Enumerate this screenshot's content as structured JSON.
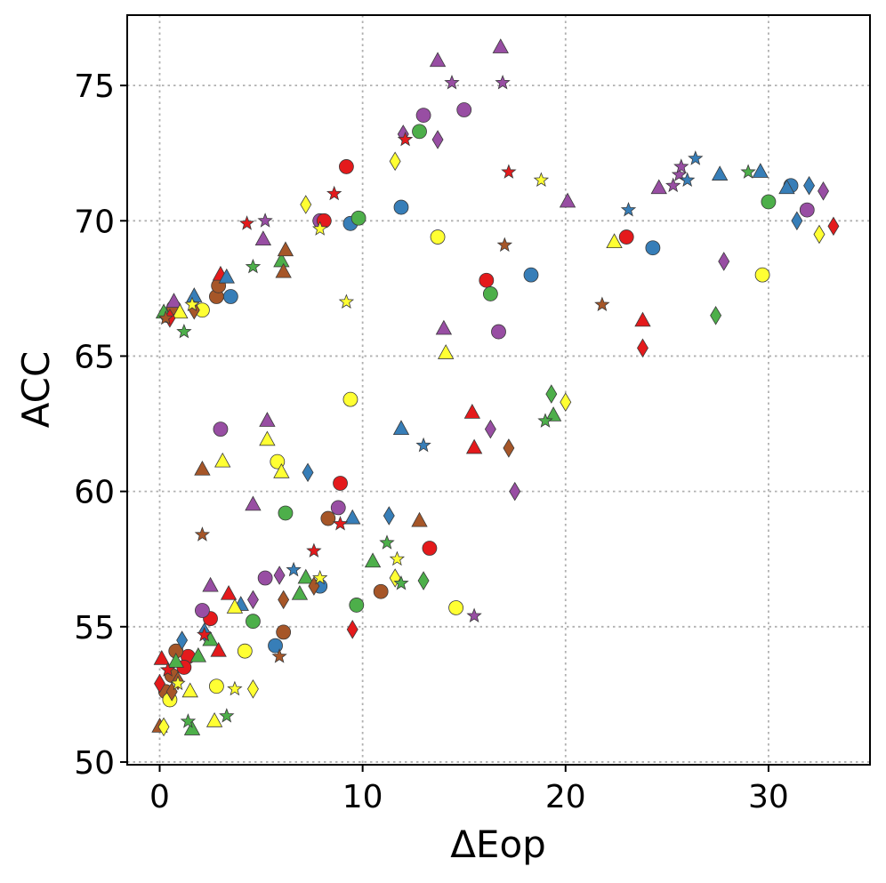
{
  "chart_data": {
    "type": "scatter",
    "title": "",
    "xlabel": "ΔEop",
    "ylabel": "ACC",
    "xlim": [
      -1.6,
      35
    ],
    "ylim": [
      49.9,
      77.6
    ],
    "xticks": [
      0,
      10,
      20,
      30
    ],
    "yticks": [
      50,
      55,
      60,
      65,
      70,
      75
    ],
    "grid": true,
    "legend": "none",
    "colors": {
      "red": "#e41a1c",
      "blue": "#377eb8",
      "green": "#4daf4a",
      "purple": "#984ea3",
      "yellow": "#ffff33",
      "brown": "#a65628"
    },
    "points": [
      {
        "x": 2.1,
        "y": 66.7,
        "c": "yellow",
        "m": "circle"
      },
      {
        "x": 2.8,
        "y": 67.2,
        "c": "brown",
        "m": "circle"
      },
      {
        "x": 3.5,
        "y": 67.2,
        "c": "blue",
        "m": "circle"
      },
      {
        "x": 2.9,
        "y": 67.6,
        "c": "brown",
        "m": "circle"
      },
      {
        "x": 0.4,
        "y": 66.5,
        "c": "yellow",
        "m": "circle"
      },
      {
        "x": 0.7,
        "y": 66.8,
        "c": "brown",
        "m": "circle"
      },
      {
        "x": 7.9,
        "y": 70.0,
        "c": "purple",
        "m": "circle"
      },
      {
        "x": 8.1,
        "y": 70.0,
        "c": "red",
        "m": "circle"
      },
      {
        "x": 9.2,
        "y": 72.0,
        "c": "red",
        "m": "circle"
      },
      {
        "x": 9.4,
        "y": 69.9,
        "c": "blue",
        "m": "circle"
      },
      {
        "x": 9.8,
        "y": 70.1,
        "c": "green",
        "m": "circle"
      },
      {
        "x": 11.9,
        "y": 70.5,
        "c": "blue",
        "m": "circle"
      },
      {
        "x": 12.8,
        "y": 73.3,
        "c": "green",
        "m": "circle"
      },
      {
        "x": 13.0,
        "y": 73.9,
        "c": "purple",
        "m": "circle"
      },
      {
        "x": 13.7,
        "y": 69.4,
        "c": "yellow",
        "m": "circle"
      },
      {
        "x": 15.0,
        "y": 74.1,
        "c": "purple",
        "m": "circle"
      },
      {
        "x": 16.1,
        "y": 67.8,
        "c": "red",
        "m": "circle"
      },
      {
        "x": 16.3,
        "y": 67.3,
        "c": "green",
        "m": "circle"
      },
      {
        "x": 16.7,
        "y": 65.9,
        "c": "purple",
        "m": "circle"
      },
      {
        "x": 18.3,
        "y": 68.0,
        "c": "blue",
        "m": "circle"
      },
      {
        "x": 23.0,
        "y": 69.4,
        "c": "red",
        "m": "circle"
      },
      {
        "x": 24.3,
        "y": 69.0,
        "c": "blue",
        "m": "circle"
      },
      {
        "x": 29.7,
        "y": 68.0,
        "c": "yellow",
        "m": "circle"
      },
      {
        "x": 30.0,
        "y": 70.7,
        "c": "green",
        "m": "circle"
      },
      {
        "x": 31.1,
        "y": 71.3,
        "c": "blue",
        "m": "circle"
      },
      {
        "x": 31.9,
        "y": 70.4,
        "c": "purple",
        "m": "circle"
      },
      {
        "x": 3.0,
        "y": 62.3,
        "c": "purple",
        "m": "circle"
      },
      {
        "x": 5.8,
        "y": 61.1,
        "c": "yellow",
        "m": "circle"
      },
      {
        "x": 6.2,
        "y": 59.2,
        "c": "green",
        "m": "circle"
      },
      {
        "x": 8.9,
        "y": 60.3,
        "c": "red",
        "m": "circle"
      },
      {
        "x": 8.8,
        "y": 59.4,
        "c": "purple",
        "m": "circle"
      },
      {
        "x": 8.3,
        "y": 59.0,
        "c": "brown",
        "m": "circle"
      },
      {
        "x": 9.4,
        "y": 63.4,
        "c": "yellow",
        "m": "circle"
      },
      {
        "x": 13.3,
        "y": 57.9,
        "c": "red",
        "m": "circle"
      },
      {
        "x": 10.9,
        "y": 56.3,
        "c": "brown",
        "m": "circle"
      },
      {
        "x": 9.7,
        "y": 55.8,
        "c": "green",
        "m": "circle"
      },
      {
        "x": 14.6,
        "y": 55.7,
        "c": "yellow",
        "m": "circle"
      },
      {
        "x": 7.9,
        "y": 56.5,
        "c": "blue",
        "m": "circle"
      },
      {
        "x": 5.2,
        "y": 56.8,
        "c": "purple",
        "m": "circle"
      },
      {
        "x": 6.1,
        "y": 54.8,
        "c": "brown",
        "m": "circle"
      },
      {
        "x": 5.7,
        "y": 54.3,
        "c": "blue",
        "m": "circle"
      },
      {
        "x": 4.6,
        "y": 55.2,
        "c": "green",
        "m": "circle"
      },
      {
        "x": 4.2,
        "y": 54.1,
        "c": "yellow",
        "m": "circle"
      },
      {
        "x": 2.5,
        "y": 55.3,
        "c": "red",
        "m": "circle"
      },
      {
        "x": 2.1,
        "y": 55.6,
        "c": "purple",
        "m": "circle"
      },
      {
        "x": 2.8,
        "y": 52.8,
        "c": "yellow",
        "m": "circle"
      },
      {
        "x": 1.4,
        "y": 53.9,
        "c": "red",
        "m": "circle"
      },
      {
        "x": 1.2,
        "y": 53.5,
        "c": "red",
        "m": "circle"
      },
      {
        "x": 0.8,
        "y": 54.1,
        "c": "brown",
        "m": "circle"
      },
      {
        "x": 0.6,
        "y": 53.2,
        "c": "brown",
        "m": "circle"
      },
      {
        "x": 0.3,
        "y": 52.6,
        "c": "brown",
        "m": "circle"
      },
      {
        "x": 0.5,
        "y": 52.3,
        "c": "yellow",
        "m": "circle"
      },
      {
        "x": 0.2,
        "y": 66.6,
        "c": "green",
        "m": "triangle"
      },
      {
        "x": 0.7,
        "y": 67.0,
        "c": "purple",
        "m": "triangle"
      },
      {
        "x": 1.0,
        "y": 66.6,
        "c": "yellow",
        "m": "triangle"
      },
      {
        "x": 1.7,
        "y": 67.2,
        "c": "blue",
        "m": "triangle"
      },
      {
        "x": 3.0,
        "y": 68.0,
        "c": "red",
        "m": "triangle"
      },
      {
        "x": 3.3,
        "y": 67.9,
        "c": "blue",
        "m": "triangle"
      },
      {
        "x": 5.1,
        "y": 69.3,
        "c": "purple",
        "m": "triangle"
      },
      {
        "x": 6.0,
        "y": 68.5,
        "c": "green",
        "m": "triangle"
      },
      {
        "x": 6.1,
        "y": 68.1,
        "c": "brown",
        "m": "triangle"
      },
      {
        "x": 6.2,
        "y": 68.9,
        "c": "brown",
        "m": "triangle"
      },
      {
        "x": 13.7,
        "y": 75.9,
        "c": "purple",
        "m": "triangle"
      },
      {
        "x": 16.8,
        "y": 76.4,
        "c": "purple",
        "m": "triangle"
      },
      {
        "x": 14.0,
        "y": 66.0,
        "c": "purple",
        "m": "triangle"
      },
      {
        "x": 14.1,
        "y": 65.1,
        "c": "yellow",
        "m": "triangle"
      },
      {
        "x": 20.1,
        "y": 70.7,
        "c": "purple",
        "m": "triangle"
      },
      {
        "x": 22.4,
        "y": 69.2,
        "c": "yellow",
        "m": "triangle"
      },
      {
        "x": 23.8,
        "y": 66.3,
        "c": "red",
        "m": "triangle"
      },
      {
        "x": 24.6,
        "y": 71.2,
        "c": "purple",
        "m": "triangle"
      },
      {
        "x": 27.6,
        "y": 71.7,
        "c": "blue",
        "m": "triangle"
      },
      {
        "x": 29.6,
        "y": 71.8,
        "c": "blue",
        "m": "triangle"
      },
      {
        "x": 30.9,
        "y": 71.2,
        "c": "blue",
        "m": "triangle"
      },
      {
        "x": 2.1,
        "y": 60.8,
        "c": "brown",
        "m": "triangle"
      },
      {
        "x": 3.1,
        "y": 61.1,
        "c": "yellow",
        "m": "triangle"
      },
      {
        "x": 5.3,
        "y": 62.6,
        "c": "purple",
        "m": "triangle"
      },
      {
        "x": 5.3,
        "y": 61.9,
        "c": "yellow",
        "m": "triangle"
      },
      {
        "x": 6.0,
        "y": 60.7,
        "c": "yellow",
        "m": "triangle"
      },
      {
        "x": 4.6,
        "y": 59.5,
        "c": "purple",
        "m": "triangle"
      },
      {
        "x": 9.5,
        "y": 59.0,
        "c": "blue",
        "m": "triangle"
      },
      {
        "x": 11.9,
        "y": 62.3,
        "c": "blue",
        "m": "triangle"
      },
      {
        "x": 12.8,
        "y": 58.9,
        "c": "brown",
        "m": "triangle"
      },
      {
        "x": 15.4,
        "y": 62.9,
        "c": "red",
        "m": "triangle"
      },
      {
        "x": 15.5,
        "y": 61.6,
        "c": "red",
        "m": "triangle"
      },
      {
        "x": 19.4,
        "y": 62.8,
        "c": "green",
        "m": "triangle"
      },
      {
        "x": 10.5,
        "y": 57.4,
        "c": "green",
        "m": "triangle"
      },
      {
        "x": 7.2,
        "y": 56.8,
        "c": "green",
        "m": "triangle"
      },
      {
        "x": 6.9,
        "y": 56.2,
        "c": "green",
        "m": "triangle"
      },
      {
        "x": 3.4,
        "y": 56.2,
        "c": "red",
        "m": "triangle"
      },
      {
        "x": 2.5,
        "y": 56.5,
        "c": "purple",
        "m": "triangle"
      },
      {
        "x": 4.0,
        "y": 55.8,
        "c": "blue",
        "m": "triangle"
      },
      {
        "x": 3.7,
        "y": 55.7,
        "c": "yellow",
        "m": "triangle"
      },
      {
        "x": 2.5,
        "y": 54.5,
        "c": "green",
        "m": "triangle"
      },
      {
        "x": 2.9,
        "y": 54.1,
        "c": "red",
        "m": "triangle"
      },
      {
        "x": 1.9,
        "y": 53.9,
        "c": "green",
        "m": "triangle"
      },
      {
        "x": 0.1,
        "y": 53.8,
        "c": "red",
        "m": "triangle"
      },
      {
        "x": 1.5,
        "y": 52.6,
        "c": "yellow",
        "m": "triangle"
      },
      {
        "x": 1.6,
        "y": 51.2,
        "c": "green",
        "m": "triangle"
      },
      {
        "x": 2.7,
        "y": 51.5,
        "c": "yellow",
        "m": "triangle"
      },
      {
        "x": 0.0,
        "y": 51.3,
        "c": "brown",
        "m": "triangle"
      },
      {
        "x": 0.8,
        "y": 53.7,
        "c": "green",
        "m": "triangle"
      },
      {
        "x": 0.5,
        "y": 66.4,
        "c": "red",
        "m": "diamond"
      },
      {
        "x": 1.7,
        "y": 66.7,
        "c": "brown",
        "m": "diamond"
      },
      {
        "x": 7.2,
        "y": 70.6,
        "c": "yellow",
        "m": "diamond"
      },
      {
        "x": 11.6,
        "y": 72.2,
        "c": "yellow",
        "m": "diamond"
      },
      {
        "x": 12.0,
        "y": 73.2,
        "c": "purple",
        "m": "diamond"
      },
      {
        "x": 13.7,
        "y": 73.0,
        "c": "purple",
        "m": "diamond"
      },
      {
        "x": 23.8,
        "y": 65.3,
        "c": "red",
        "m": "diamond"
      },
      {
        "x": 27.4,
        "y": 66.5,
        "c": "green",
        "m": "diamond"
      },
      {
        "x": 27.8,
        "y": 68.5,
        "c": "purple",
        "m": "diamond"
      },
      {
        "x": 31.4,
        "y": 70.0,
        "c": "blue",
        "m": "diamond"
      },
      {
        "x": 32.0,
        "y": 71.3,
        "c": "blue",
        "m": "diamond"
      },
      {
        "x": 32.5,
        "y": 69.5,
        "c": "yellow",
        "m": "diamond"
      },
      {
        "x": 32.7,
        "y": 71.1,
        "c": "purple",
        "m": "diamond"
      },
      {
        "x": 33.2,
        "y": 69.8,
        "c": "red",
        "m": "diamond"
      },
      {
        "x": 7.3,
        "y": 60.7,
        "c": "blue",
        "m": "diamond"
      },
      {
        "x": 11.3,
        "y": 59.1,
        "c": "blue",
        "m": "diamond"
      },
      {
        "x": 16.3,
        "y": 62.3,
        "c": "purple",
        "m": "diamond"
      },
      {
        "x": 17.2,
        "y": 61.6,
        "c": "brown",
        "m": "diamond"
      },
      {
        "x": 17.5,
        "y": 60.0,
        "c": "purple",
        "m": "diamond"
      },
      {
        "x": 19.3,
        "y": 63.6,
        "c": "green",
        "m": "diamond"
      },
      {
        "x": 20.0,
        "y": 63.3,
        "c": "yellow",
        "m": "diamond"
      },
      {
        "x": 13.0,
        "y": 56.7,
        "c": "green",
        "m": "diamond"
      },
      {
        "x": 11.6,
        "y": 56.8,
        "c": "yellow",
        "m": "diamond"
      },
      {
        "x": 9.5,
        "y": 54.9,
        "c": "red",
        "m": "diamond"
      },
      {
        "x": 7.6,
        "y": 56.5,
        "c": "brown",
        "m": "diamond"
      },
      {
        "x": 6.1,
        "y": 56.0,
        "c": "brown",
        "m": "diamond"
      },
      {
        "x": 5.9,
        "y": 56.9,
        "c": "purple",
        "m": "diamond"
      },
      {
        "x": 4.6,
        "y": 56.0,
        "c": "purple",
        "m": "diamond"
      },
      {
        "x": 4.6,
        "y": 52.7,
        "c": "yellow",
        "m": "diamond"
      },
      {
        "x": 1.1,
        "y": 54.5,
        "c": "blue",
        "m": "diamond"
      },
      {
        "x": 2.2,
        "y": 54.8,
        "c": "blue",
        "m": "diamond"
      },
      {
        "x": 0.2,
        "y": 51.3,
        "c": "yellow",
        "m": "diamond"
      },
      {
        "x": 0.6,
        "y": 52.6,
        "c": "brown",
        "m": "diamond"
      },
      {
        "x": 0.9,
        "y": 53.0,
        "c": "brown",
        "m": "diamond"
      },
      {
        "x": 0.0,
        "y": 52.9,
        "c": "red",
        "m": "diamond"
      },
      {
        "x": 1.6,
        "y": 66.9,
        "c": "yellow",
        "m": "star"
      },
      {
        "x": 1.2,
        "y": 65.9,
        "c": "green",
        "m": "star"
      },
      {
        "x": 0.3,
        "y": 66.4,
        "c": "brown",
        "m": "star"
      },
      {
        "x": 4.3,
        "y": 69.9,
        "c": "red",
        "m": "star"
      },
      {
        "x": 4.6,
        "y": 68.3,
        "c": "green",
        "m": "star"
      },
      {
        "x": 5.2,
        "y": 70.0,
        "c": "purple",
        "m": "star"
      },
      {
        "x": 7.9,
        "y": 69.7,
        "c": "yellow",
        "m": "star"
      },
      {
        "x": 8.6,
        "y": 71.0,
        "c": "red",
        "m": "star"
      },
      {
        "x": 9.2,
        "y": 67.0,
        "c": "yellow",
        "m": "star"
      },
      {
        "x": 12.1,
        "y": 73.0,
        "c": "red",
        "m": "star"
      },
      {
        "x": 14.4,
        "y": 75.1,
        "c": "purple",
        "m": "star"
      },
      {
        "x": 16.9,
        "y": 75.1,
        "c": "purple",
        "m": "star"
      },
      {
        "x": 17.2,
        "y": 71.8,
        "c": "red",
        "m": "star"
      },
      {
        "x": 17.0,
        "y": 69.1,
        "c": "brown",
        "m": "star"
      },
      {
        "x": 18.8,
        "y": 71.5,
        "c": "yellow",
        "m": "star"
      },
      {
        "x": 21.8,
        "y": 66.9,
        "c": "brown",
        "m": "star"
      },
      {
        "x": 23.1,
        "y": 70.4,
        "c": "blue",
        "m": "star"
      },
      {
        "x": 25.3,
        "y": 71.3,
        "c": "purple",
        "m": "star"
      },
      {
        "x": 25.6,
        "y": 71.7,
        "c": "purple",
        "m": "star"
      },
      {
        "x": 25.7,
        "y": 72.0,
        "c": "purple",
        "m": "star"
      },
      {
        "x": 26.0,
        "y": 71.5,
        "c": "blue",
        "m": "star"
      },
      {
        "x": 26.4,
        "y": 72.3,
        "c": "blue",
        "m": "star"
      },
      {
        "x": 29.0,
        "y": 71.8,
        "c": "green",
        "m": "star"
      },
      {
        "x": 2.1,
        "y": 58.4,
        "c": "brown",
        "m": "star"
      },
      {
        "x": 8.9,
        "y": 58.8,
        "c": "red",
        "m": "star"
      },
      {
        "x": 7.6,
        "y": 57.8,
        "c": "red",
        "m": "star"
      },
      {
        "x": 6.6,
        "y": 57.1,
        "c": "blue",
        "m": "star"
      },
      {
        "x": 7.9,
        "y": 56.8,
        "c": "yellow",
        "m": "star"
      },
      {
        "x": 11.2,
        "y": 58.1,
        "c": "green",
        "m": "star"
      },
      {
        "x": 11.7,
        "y": 57.5,
        "c": "yellow",
        "m": "star"
      },
      {
        "x": 11.9,
        "y": 56.6,
        "c": "green",
        "m": "star"
      },
      {
        "x": 13.0,
        "y": 61.7,
        "c": "blue",
        "m": "star"
      },
      {
        "x": 15.5,
        "y": 55.4,
        "c": "purple",
        "m": "star"
      },
      {
        "x": 19.0,
        "y": 62.6,
        "c": "green",
        "m": "star"
      },
      {
        "x": 5.9,
        "y": 53.9,
        "c": "brown",
        "m": "star"
      },
      {
        "x": 3.7,
        "y": 52.7,
        "c": "yellow",
        "m": "star"
      },
      {
        "x": 3.3,
        "y": 51.7,
        "c": "green",
        "m": "star"
      },
      {
        "x": 1.4,
        "y": 51.5,
        "c": "green",
        "m": "star"
      },
      {
        "x": 2.2,
        "y": 54.7,
        "c": "red",
        "m": "star"
      },
      {
        "x": 0.4,
        "y": 53.4,
        "c": "red",
        "m": "star"
      },
      {
        "x": 0.9,
        "y": 52.9,
        "c": "yellow",
        "m": "star"
      }
    ]
  }
}
